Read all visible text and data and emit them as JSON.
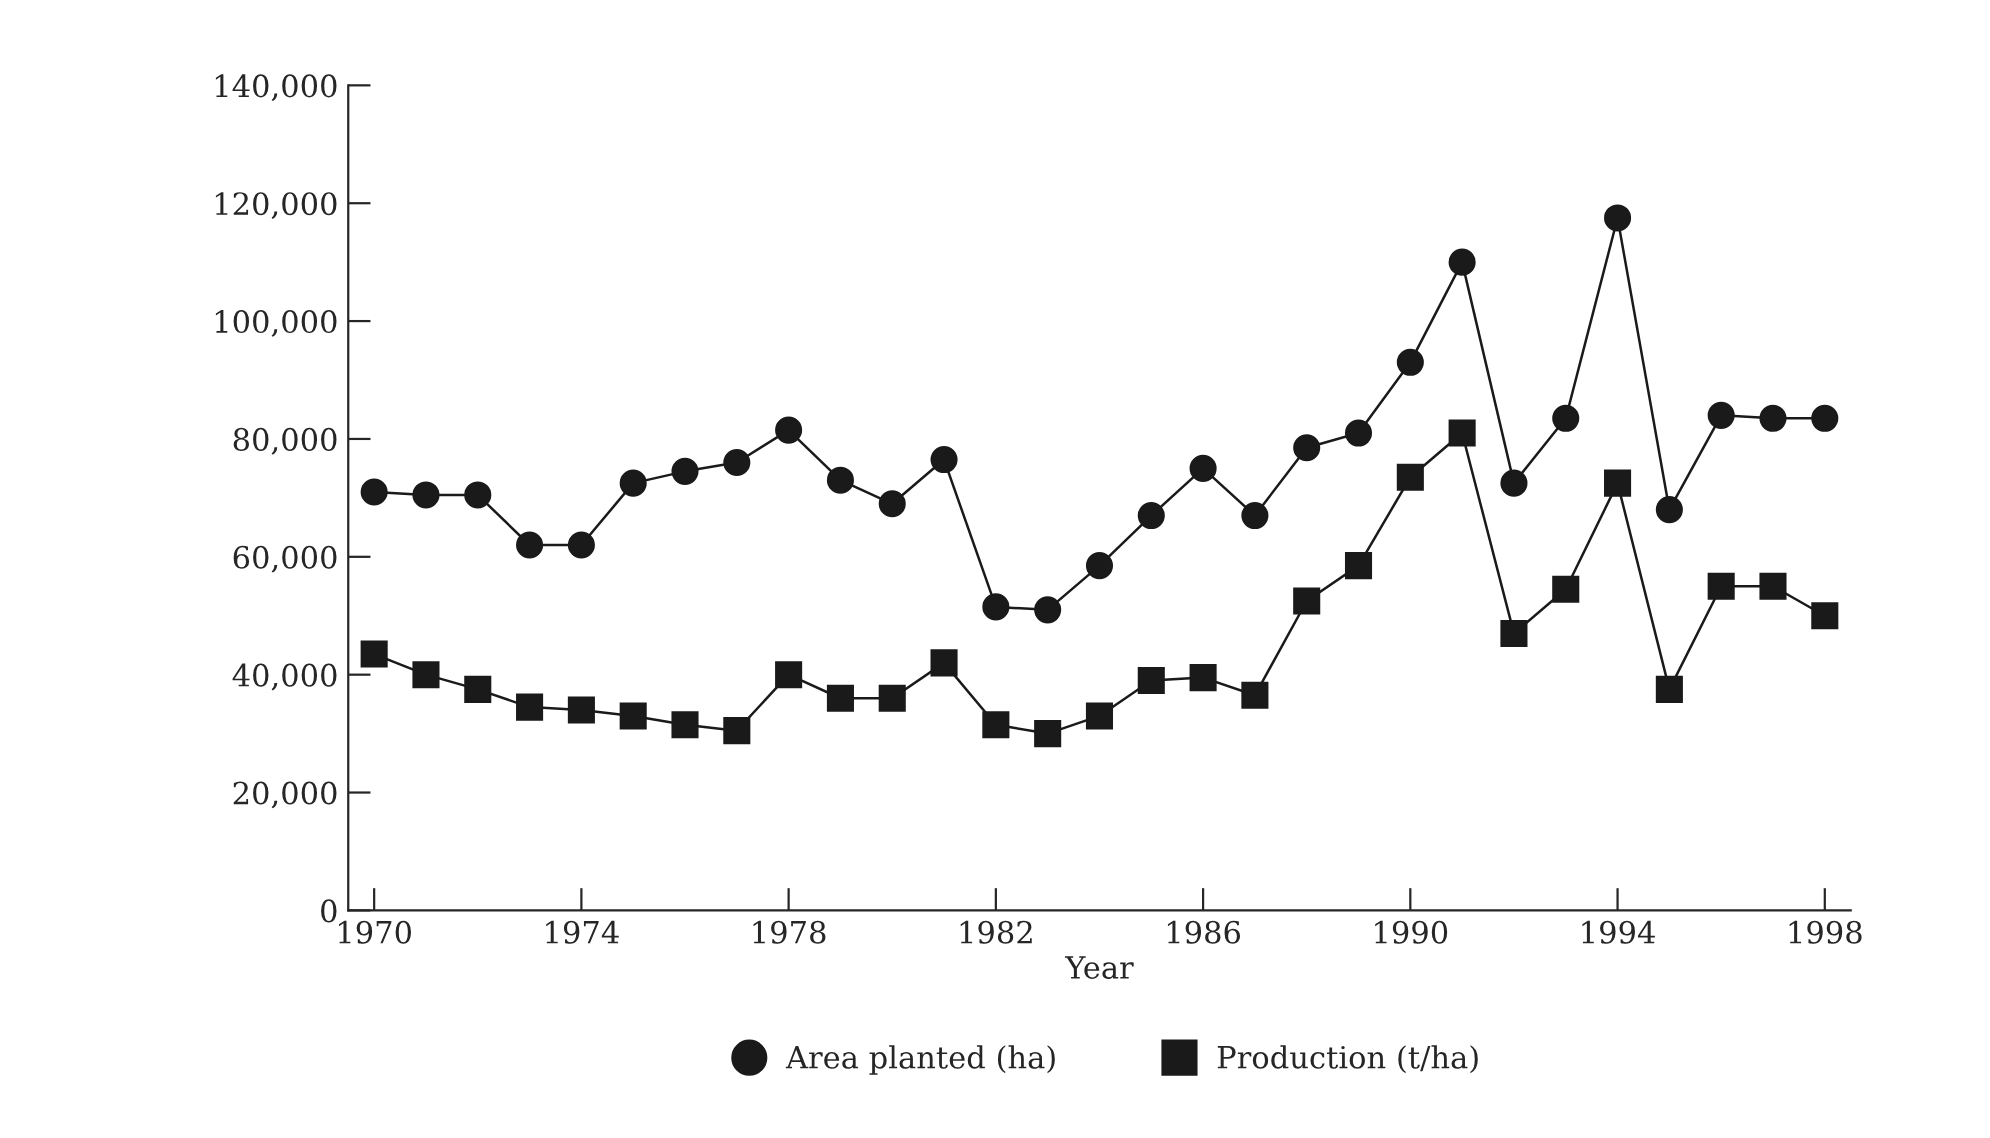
{
  "chart_data": {
    "type": "line",
    "xlabel": "Year",
    "x": [
      1970,
      1971,
      1972,
      1973,
      1974,
      1975,
      1976,
      1977,
      1978,
      1979,
      1980,
      1981,
      1982,
      1983,
      1984,
      1985,
      1986,
      1987,
      1988,
      1989,
      1990,
      1991,
      1992,
      1993,
      1994,
      1995,
      1996,
      1997,
      1998
    ],
    "series": [
      {
        "name": "Area planted (ha)",
        "color": "#1a1a1a",
        "marker": "circle",
        "values": [
          71000,
          70500,
          70500,
          62000,
          62000,
          72500,
          74500,
          76000,
          81500,
          73000,
          69000,
          76500,
          51500,
          51000,
          58500,
          67000,
          75000,
          67000,
          78500,
          81000,
          93000,
          110000,
          72500,
          83500,
          117500,
          68000,
          84000,
          83500,
          83500
        ]
      },
      {
        "name": "Production (t/ha)",
        "color": "#1a1a1a",
        "marker": "square",
        "values": [
          43500,
          40000,
          37500,
          34500,
          34000,
          33000,
          31500,
          30500,
          40000,
          36000,
          36000,
          42000,
          31500,
          30000,
          33000,
          39000,
          39500,
          36500,
          52500,
          58500,
          73500,
          81000,
          47000,
          54500,
          72500,
          37500,
          55000,
          55000,
          50000
        ]
      }
    ],
    "xlim": [
      1969.5,
      1998.5
    ],
    "xticks": [
      1970,
      1974,
      1978,
      1982,
      1986,
      1990,
      1994,
      1998
    ],
    "ylim": [
      0,
      140000
    ],
    "yticks": [
      {
        "value": 0,
        "label": "0"
      },
      {
        "value": 20000,
        "label": "20,000"
      },
      {
        "value": 40000,
        "label": "40,000"
      },
      {
        "value": 60000,
        "label": "60,000"
      },
      {
        "value": 80000,
        "label": "80,000"
      },
      {
        "value": 100000,
        "label": "100,000"
      },
      {
        "value": 120000,
        "label": "120,000"
      },
      {
        "value": 140000,
        "label": "140,000"
      }
    ],
    "grid": false,
    "legend": "bottom",
    "line_style": "solid"
  }
}
